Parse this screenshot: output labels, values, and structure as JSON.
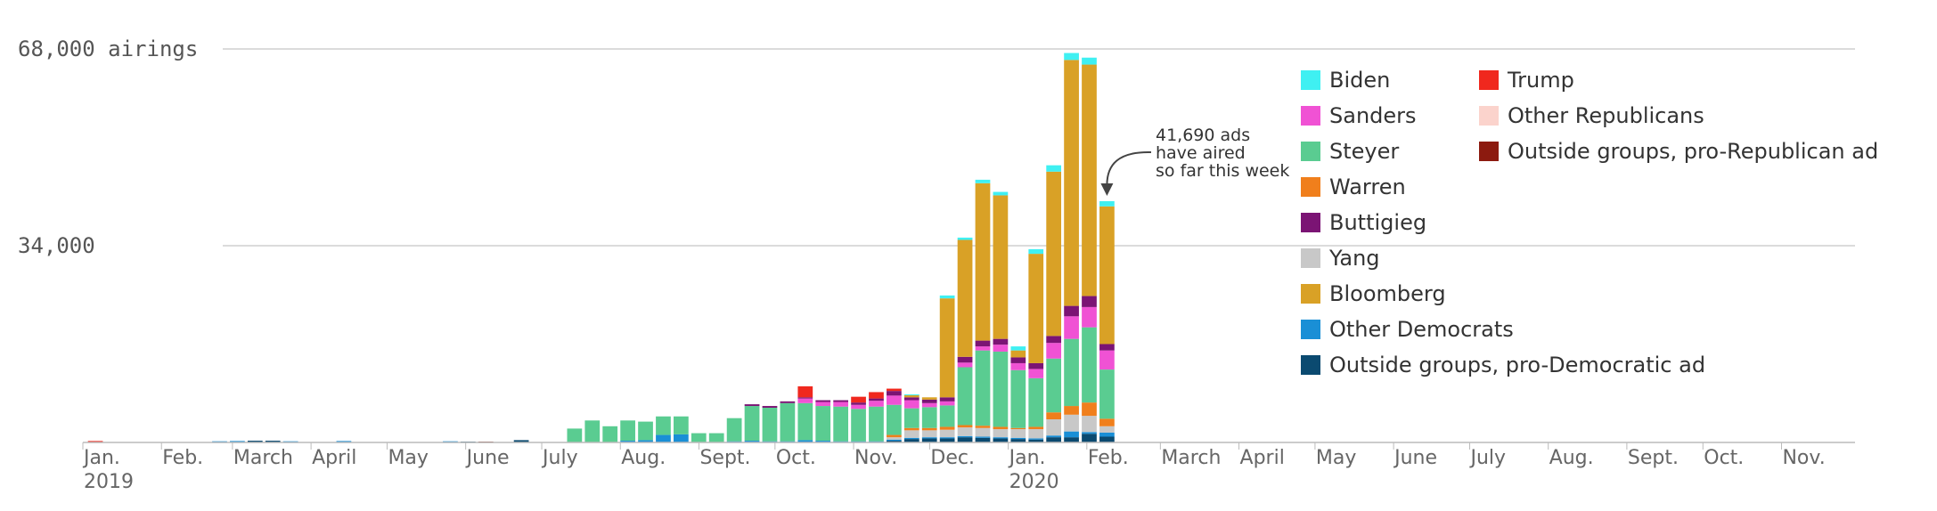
{
  "chart_data": {
    "type": "bar",
    "stacked": true,
    "ylim": [
      0,
      68000
    ],
    "yticks": [
      {
        "value": 34000,
        "label": "34,000"
      },
      {
        "value": 68000,
        "label": "68,000 airings"
      }
    ],
    "grid": true,
    "legend_position": "top-right",
    "x_range": [
      "2019-01-01",
      "2020-11-30"
    ],
    "xticks": [
      {
        "date": "2019-01-01",
        "label": "Jan.",
        "year": "2019"
      },
      {
        "date": "2019-02-01",
        "label": "Feb."
      },
      {
        "date": "2019-03-01",
        "label": "March"
      },
      {
        "date": "2019-04-01",
        "label": "April"
      },
      {
        "date": "2019-05-01",
        "label": "May"
      },
      {
        "date": "2019-06-01",
        "label": "June"
      },
      {
        "date": "2019-07-01",
        "label": "July"
      },
      {
        "date": "2019-08-01",
        "label": "Aug."
      },
      {
        "date": "2019-09-01",
        "label": "Sept."
      },
      {
        "date": "2019-10-01",
        "label": "Oct."
      },
      {
        "date": "2019-11-01",
        "label": "Nov."
      },
      {
        "date": "2019-12-01",
        "label": "Dec."
      },
      {
        "date": "2020-01-01",
        "label": "Jan.",
        "year": "2020"
      },
      {
        "date": "2020-02-01",
        "label": "Feb."
      },
      {
        "date": "2020-03-01",
        "label": "March"
      },
      {
        "date": "2020-04-01",
        "label": "April"
      },
      {
        "date": "2020-05-01",
        "label": "May"
      },
      {
        "date": "2020-06-01",
        "label": "June"
      },
      {
        "date": "2020-07-01",
        "label": "July"
      },
      {
        "date": "2020-08-01",
        "label": "Aug."
      },
      {
        "date": "2020-09-01",
        "label": "Sept."
      },
      {
        "date": "2020-10-01",
        "label": "Oct."
      },
      {
        "date": "2020-11-01",
        "label": "Nov."
      }
    ],
    "series": [
      {
        "key": "od",
        "name": "Outside groups, pro-Democratic ad",
        "color": "#0b4a70"
      },
      {
        "key": "dem",
        "name": "Other Democrats",
        "color": "#1a8fd6"
      },
      {
        "key": "yang",
        "name": "Yang",
        "color": "#c8c8c8"
      },
      {
        "key": "warren",
        "name": "Warren",
        "color": "#f07f1c"
      },
      {
        "key": "steyer",
        "name": "Steyer",
        "color": "#5acc91"
      },
      {
        "key": "sanders",
        "name": "Sanders",
        "color": "#f052d4"
      },
      {
        "key": "buttigieg",
        "name": "Buttigieg",
        "color": "#7b1474"
      },
      {
        "key": "bloomberg",
        "name": "Bloomberg",
        "color": "#d9a126"
      },
      {
        "key": "biden",
        "name": "Biden",
        "color": "#3ff0f2"
      },
      {
        "key": "trump",
        "name": "Trump",
        "color": "#f0281e"
      },
      {
        "key": "otherrep",
        "name": "Other Republicans",
        "color": "#fbd3cc"
      },
      {
        "key": "outrep",
        "name": "Outside groups, pro-Republican ad",
        "color": "#8c1a0f"
      }
    ],
    "weeks": [
      {
        "week": "2019-01-03",
        "trump": 250
      },
      {
        "week": "2019-02-21",
        "dem": 200
      },
      {
        "week": "2019-02-28",
        "dem": 250
      },
      {
        "week": "2019-03-07",
        "od": 300
      },
      {
        "week": "2019-03-14",
        "od": 300
      },
      {
        "week": "2019-03-21",
        "dem": 200
      },
      {
        "week": "2019-04-11",
        "dem": 250
      },
      {
        "week": "2019-05-23",
        "dem": 200
      },
      {
        "week": "2019-05-30",
        "od": 150
      },
      {
        "week": "2019-06-06",
        "outrep": 150
      },
      {
        "week": "2019-06-20",
        "od": 400
      },
      {
        "week": "2019-07-11",
        "steyer": 2400
      },
      {
        "week": "2019-07-18",
        "steyer": 3800
      },
      {
        "week": "2019-07-25",
        "steyer": 2800
      },
      {
        "week": "2019-08-01",
        "dem": 300,
        "steyer": 3500
      },
      {
        "week": "2019-08-08",
        "dem": 400,
        "steyer": 3200
      },
      {
        "week": "2019-08-15",
        "dem": 1300,
        "steyer": 3200
      },
      {
        "week": "2019-08-22",
        "dem": 1400,
        "steyer": 3100
      },
      {
        "week": "2019-08-29",
        "steyer": 1600
      },
      {
        "week": "2019-09-05",
        "steyer": 1600
      },
      {
        "week": "2019-09-12",
        "dem": 200,
        "steyer": 4000
      },
      {
        "week": "2019-09-19",
        "dem": 300,
        "steyer": 6000,
        "buttigieg": 300
      },
      {
        "week": "2019-09-26",
        "dem": 200,
        "steyer": 5800,
        "buttigieg": 300
      },
      {
        "week": "2019-10-03",
        "dem": 200,
        "steyer": 6600,
        "buttigieg": 300
      },
      {
        "week": "2019-10-10",
        "dem": 400,
        "steyer": 6400,
        "sanders": 800,
        "buttigieg": 200,
        "trump": 1900
      },
      {
        "week": "2019-10-17",
        "dem": 300,
        "steyer": 6000,
        "sanders": 700,
        "buttigieg": 300
      },
      {
        "week": "2019-10-24",
        "dem": 200,
        "steyer": 6000,
        "sanders": 800,
        "buttigieg": 300
      },
      {
        "week": "2019-10-31",
        "dem": 200,
        "steyer": 5600,
        "sanders": 700,
        "buttigieg": 400,
        "trump": 1000
      },
      {
        "week": "2019-11-07",
        "dem": 200,
        "steyer": 6000,
        "sanders": 1000,
        "buttigieg": 400,
        "trump": 1100
      },
      {
        "week": "2019-11-14",
        "od": 300,
        "dem": 200,
        "yang": 400,
        "warren": 400,
        "steyer": 5200,
        "sanders": 1600,
        "buttigieg": 800,
        "trump": 400
      },
      {
        "week": "2019-11-21",
        "od": 600,
        "dem": 200,
        "yang": 1300,
        "warren": 400,
        "steyer": 3400,
        "sanders": 1400,
        "buttigieg": 500,
        "bloomberg": 400,
        "biden": 100
      },
      {
        "week": "2019-11-28",
        "od": 700,
        "dem": 200,
        "yang": 1200,
        "warren": 400,
        "steyer": 3600,
        "sanders": 700,
        "buttigieg": 600,
        "bloomberg": 400
      },
      {
        "week": "2019-12-05",
        "od": 700,
        "dem": 200,
        "yang": 1300,
        "warren": 500,
        "steyer": 3700,
        "sanders": 700,
        "buttigieg": 700,
        "bloomberg": 17100,
        "biden": 500
      },
      {
        "week": "2019-12-12",
        "od": 900,
        "dem": 200,
        "yang": 1500,
        "warren": 400,
        "steyer": 10000,
        "sanders": 800,
        "buttigieg": 1000,
        "bloomberg": 20200,
        "biden": 400
      },
      {
        "week": "2019-12-19",
        "od": 800,
        "dem": 200,
        "yang": 1500,
        "warren": 400,
        "steyer": 13000,
        "sanders": 700,
        "buttigieg": 1000,
        "bloomberg": 27200,
        "biden": 600
      },
      {
        "week": "2019-12-26",
        "od": 700,
        "dem": 200,
        "yang": 1400,
        "warren": 400,
        "steyer": 13000,
        "sanders": 1200,
        "buttigieg": 1000,
        "bloomberg": 24800,
        "biden": 600
      },
      {
        "week": "2020-01-02",
        "od": 600,
        "dem": 200,
        "yang": 1500,
        "warren": 200,
        "steyer": 10000,
        "sanders": 1200,
        "buttigieg": 1000,
        "bloomberg": 1200,
        "biden": 700
      },
      {
        "week": "2020-01-09",
        "od": 500,
        "dem": 200,
        "yang": 1600,
        "warren": 400,
        "steyer": 8400,
        "sanders": 1600,
        "buttigieg": 1000,
        "bloomberg": 18900,
        "biden": 800
      },
      {
        "week": "2020-01-16",
        "od": 900,
        "dem": 300,
        "yang": 2800,
        "warren": 1200,
        "steyer": 9300,
        "sanders": 2700,
        "buttigieg": 1200,
        "bloomberg": 28400,
        "biden": 1100
      },
      {
        "week": "2020-01-23",
        "od": 900,
        "dem": 1000,
        "yang": 2900,
        "warren": 1500,
        "steyer": 11600,
        "sanders": 3900,
        "buttigieg": 1800,
        "bloomberg": 42500,
        "biden": 1200
      },
      {
        "week": "2020-01-30",
        "od": 1500,
        "dem": 300,
        "yang": 2800,
        "warren": 2300,
        "steyer": 13000,
        "sanders": 3500,
        "buttigieg": 1900,
        "bloomberg": 40000,
        "biden": 1200
      },
      {
        "week": "2020-02-06",
        "od": 1000,
        "dem": 700,
        "yang": 1100,
        "warren": 1300,
        "steyer": 8500,
        "sanders": 3300,
        "buttigieg": 1100,
        "bloomberg": 23800,
        "biden": 900
      }
    ],
    "annotation": {
      "lines": [
        "41,690 ads",
        "have aired",
        "so far this week"
      ],
      "week": "2020-02-06"
    }
  },
  "legend": {
    "columns": [
      [
        "Biden",
        "Sanders",
        "Steyer",
        "Warren",
        "Buttigieg",
        "Yang",
        "Bloomberg",
        "Other Democrats",
        "Outside groups, pro-Democratic ad"
      ],
      [
        "Trump",
        "Other Republicans",
        "Outside groups, pro-Republican ad"
      ]
    ]
  }
}
